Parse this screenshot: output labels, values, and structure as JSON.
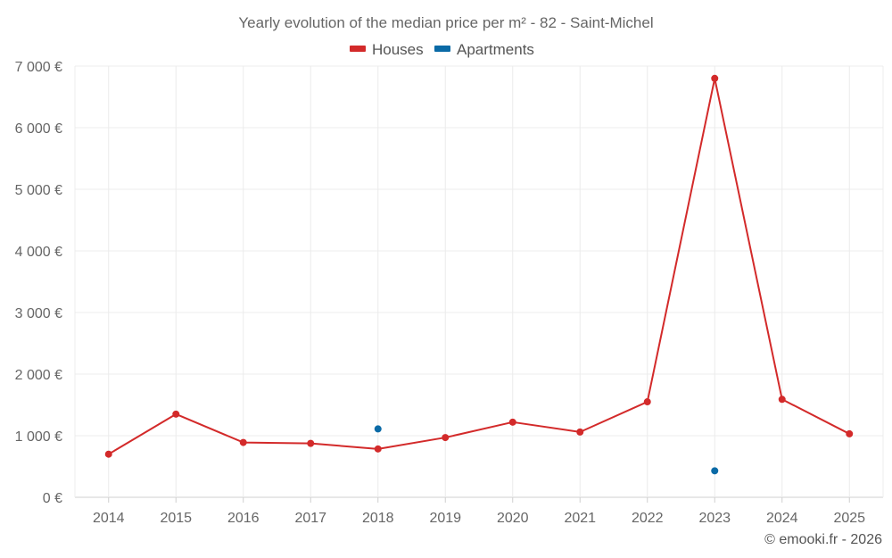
{
  "chart_data": {
    "type": "line",
    "title": "Yearly evolution of the median price per m² - 82 - Saint-Michel",
    "x": [
      "2014",
      "2015",
      "2016",
      "2017",
      "2018",
      "2019",
      "2020",
      "2021",
      "2022",
      "2023",
      "2024",
      "2025"
    ],
    "y_ticks": [
      "0 €",
      "1 000 €",
      "2 000 €",
      "3 000 €",
      "4 000 €",
      "5 000 €",
      "6 000 €",
      "7 000 €"
    ],
    "ylim": [
      0,
      7000
    ],
    "grid": true,
    "legend_position": "top-center",
    "series": [
      {
        "name": "Houses",
        "color": "#d32a2a",
        "values": [
          700,
          1350,
          890,
          875,
          785,
          970,
          1220,
          1060,
          1550,
          6800,
          1590,
          1030
        ]
      },
      {
        "name": "Apartments",
        "color": "#0a6aa6",
        "values": [
          null,
          null,
          null,
          null,
          1110,
          null,
          null,
          null,
          null,
          430,
          null,
          null
        ]
      }
    ]
  },
  "credit": "© emooki.fr - 2026"
}
